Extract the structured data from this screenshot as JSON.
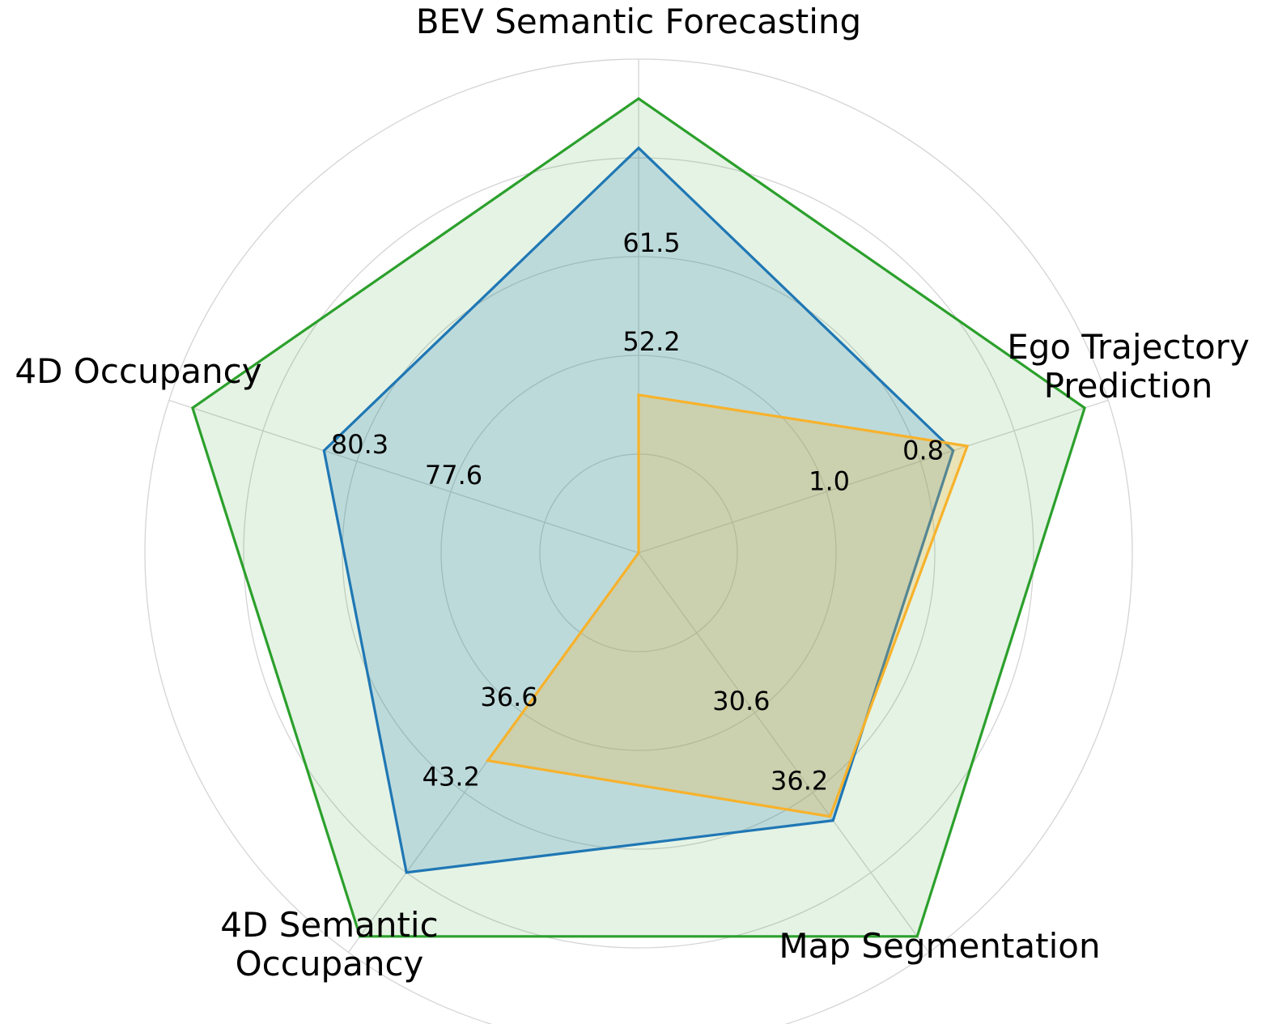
{
  "chart_data": {
    "type": "radar",
    "axes": [
      {
        "key": "bev",
        "label_lines": [
          "BEV Semantic Forecasting"
        ]
      },
      {
        "key": "ego",
        "label_lines": [
          "Ego Trajectory",
          "Prediction"
        ]
      },
      {
        "key": "map",
        "label_lines": [
          "Map Segmentation"
        ]
      },
      {
        "key": "sem",
        "label_lines": [
          "4D Semantic",
          "Occupancy"
        ]
      },
      {
        "key": "occ",
        "label_lines": [
          "4D Occupancy"
        ]
      }
    ],
    "tick_labels": {
      "bev": [
        "52.2",
        "61.5"
      ],
      "ego": [
        "1.0",
        "0.8"
      ],
      "map": [
        "30.6",
        "36.2"
      ],
      "sem": [
        "36.6",
        "43.2"
      ],
      "occ": [
        "77.6",
        "80.3"
      ]
    },
    "grid_rings": 5,
    "radial_range": [
      0,
      1
    ],
    "series": [
      {
        "color": "#2ca02c",
        "fill_opacity": 0.12,
        "values": [
          0.92,
          0.95,
          0.96,
          0.96,
          0.95
        ]
      },
      {
        "color": "#1f77b4",
        "fill_opacity": 0.2,
        "values": [
          0.82,
          0.67,
          0.67,
          0.8,
          0.67
        ]
      },
      {
        "color": "#f7b22b",
        "fill_opacity": 0.25,
        "values": [
          0.32,
          0.7,
          0.66,
          0.52,
          0.0
        ]
      }
    ]
  }
}
